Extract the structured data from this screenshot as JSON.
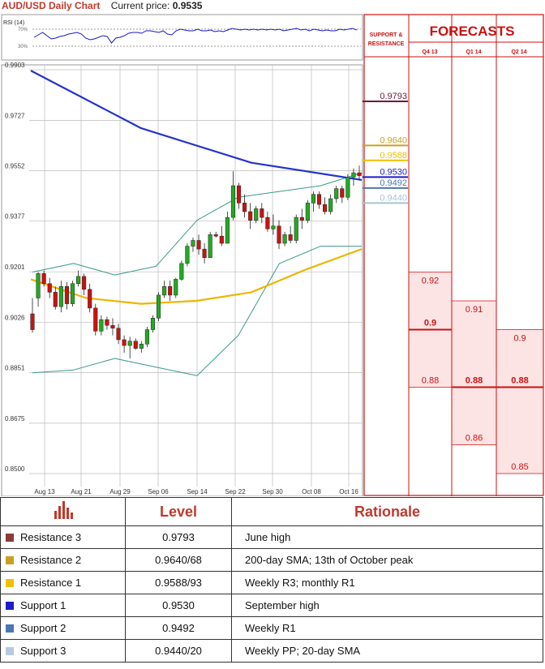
{
  "header": {
    "title": "AUD/USD Daily Chart",
    "price_label": "Current price:",
    "price_value": "0.9535"
  },
  "chart_data": {
    "type": "candlestick",
    "y_ticks": [
      "0.9903",
      "0.9727",
      "0.9552",
      "0.9377",
      "0.9201",
      "0.9026",
      "0.8851",
      "0.8675",
      "0.8500"
    ],
    "x_ticks": [
      "Aug 13",
      "Aug 21",
      "Aug 29",
      "Sep 06",
      "Sep 14",
      "Sep 22",
      "Sep 30",
      "Oct 08",
      "Oct 16"
    ],
    "ylim": [
      0.85,
      0.9903
    ],
    "rsi": {
      "label": "RSI (14)",
      "levels": [
        "70%",
        "30%"
      ]
    },
    "series": [
      {
        "name": "price",
        "color": "#111111"
      },
      {
        "name": "200-day SMA",
        "color": "#2233cc"
      },
      {
        "name": "50-day SMA",
        "color": "#f0b400"
      },
      {
        "name": "Bollinger bands",
        "color": "#3a9a8a"
      }
    ],
    "candles": [
      [
        0.9055,
        0.911,
        0.899,
        0.9
      ],
      [
        0.911,
        0.92,
        0.908,
        0.9195
      ],
      [
        0.9195,
        0.9205,
        0.915,
        0.916
      ],
      [
        0.916,
        0.918,
        0.911,
        0.913
      ],
      [
        0.913,
        0.915,
        0.907,
        0.908
      ],
      [
        0.908,
        0.917,
        0.906,
        0.915
      ],
      [
        0.915,
        0.9165,
        0.907,
        0.909
      ],
      [
        0.909,
        0.917,
        0.908,
        0.916
      ],
      [
        0.916,
        0.9205,
        0.915,
        0.9185
      ],
      [
        0.9185,
        0.9195,
        0.912,
        0.914
      ],
      [
        0.914,
        0.916,
        0.906,
        0.9075
      ],
      [
        0.9075,
        0.909,
        0.898,
        0.8995
      ],
      [
        0.8995,
        0.905,
        0.898,
        0.9035
      ],
      [
        0.9035,
        0.9045,
        0.9,
        0.9015
      ],
      [
        0.9015,
        0.904,
        0.898,
        0.9005
      ],
      [
        0.9005,
        0.902,
        0.895,
        0.8965
      ],
      [
        0.8965,
        0.898,
        0.892,
        0.8945
      ],
      [
        0.8945,
        0.8975,
        0.89,
        0.896
      ],
      [
        0.896,
        0.897,
        0.893,
        0.8935
      ],
      [
        0.8935,
        0.896,
        0.892,
        0.895
      ],
      [
        0.895,
        0.901,
        0.894,
        0.9
      ],
      [
        0.9,
        0.905,
        0.899,
        0.904
      ],
      [
        0.904,
        0.913,
        0.903,
        0.912
      ],
      [
        0.912,
        0.917,
        0.911,
        0.915
      ],
      [
        0.915,
        0.917,
        0.91,
        0.912
      ],
      [
        0.912,
        0.918,
        0.911,
        0.9175
      ],
      [
        0.9175,
        0.924,
        0.917,
        0.923
      ],
      [
        0.923,
        0.93,
        0.922,
        0.929
      ],
      [
        0.929,
        0.932,
        0.927,
        0.931
      ],
      [
        0.931,
        0.933,
        0.926,
        0.928
      ],
      [
        0.928,
        0.93,
        0.923,
        0.925
      ],
      [
        0.925,
        0.934,
        0.926,
        0.933
      ],
      [
        0.933,
        0.934,
        0.932,
        0.9325
      ],
      [
        0.9325,
        0.936,
        0.929,
        0.93
      ],
      [
        0.93,
        0.941,
        0.93,
        0.939
      ],
      [
        0.939,
        0.955,
        0.938,
        0.95
      ],
      [
        0.95,
        0.951,
        0.942,
        0.944
      ],
      [
        0.944,
        0.947,
        0.939,
        0.941
      ],
      [
        0.941,
        0.944,
        0.935,
        0.938
      ],
      [
        0.938,
        0.943,
        0.937,
        0.942
      ],
      [
        0.942,
        0.944,
        0.937,
        0.939
      ],
      [
        0.939,
        0.941,
        0.934,
        0.935
      ],
      [
        0.935,
        0.94,
        0.933,
        0.936
      ],
      [
        0.936,
        0.938,
        0.928,
        0.93
      ],
      [
        0.93,
        0.934,
        0.929,
        0.933
      ],
      [
        0.933,
        0.936,
        0.93,
        0.931
      ],
      [
        0.931,
        0.94,
        0.93,
        0.939
      ],
      [
        0.939,
        0.942,
        0.935,
        0.938
      ],
      [
        0.938,
        0.945,
        0.937,
        0.944
      ],
      [
        0.944,
        0.948,
        0.941,
        0.947
      ],
      [
        0.947,
        0.948,
        0.942,
        0.9435
      ],
      [
        0.9435,
        0.946,
        0.94,
        0.941
      ],
      [
        0.941,
        0.947,
        0.94,
        0.9455
      ],
      [
        0.9455,
        0.95,
        0.944,
        0.949
      ],
      [
        0.949,
        0.95,
        0.944,
        0.946
      ],
      [
        0.946,
        0.954,
        0.945,
        0.953
      ],
      [
        0.953,
        0.956,
        0.95,
        0.9545
      ],
      [
        0.9545,
        0.957,
        0.952,
        0.9535
      ]
    ],
    "sma200": [
      0.99,
      0.97,
      0.958,
      0.952
    ],
    "sma50": [
      0.9175,
      0.911,
      0.909,
      0.91,
      0.913,
      0.921,
      0.928
    ],
    "bb_upper": [
      0.92,
      0.923,
      0.919,
      0.922,
      0.938,
      0.946,
      0.948,
      0.95,
      0.9545
    ],
    "bb_lower": [
      0.885,
      0.886,
      0.89,
      0.887,
      0.884,
      0.898,
      0.923,
      0.929,
      0.929
    ]
  },
  "forecast_panel": {
    "sr_title_line1": "SUPPORT &",
    "sr_title_line2": "RESISTANCE",
    "title": "FORECASTS",
    "quarters": [
      "Q4 13",
      "Q1 14",
      "Q2 14"
    ],
    "levels": [
      {
        "value": "0.9793",
        "color": "#6b1a3a"
      },
      {
        "value": "0.9640",
        "color": "#c9a020"
      },
      {
        "value": "0.9588",
        "color": "#f0c000"
      },
      {
        "value": "0.9530",
        "color": "#1c1cc8"
      },
      {
        "value": "0.9492",
        "color": "#4a78b0"
      },
      {
        "value": "0.9440",
        "color": "#a8c4d8"
      }
    ],
    "q4": {
      "high": "0.92",
      "mid": "0.9",
      "low": "0.88"
    },
    "q1": {
      "high": "0.91",
      "mid": "0.88",
      "low": "0.86"
    },
    "q2": {
      "high": "0.9",
      "mid": "0.88",
      "low": "0.85"
    }
  },
  "table": {
    "headers": {
      "level": "Level",
      "rationale": "Rationale"
    },
    "rows": [
      {
        "name": "Resistance 3",
        "level": "0.9793",
        "rationale": "June high",
        "color": "#8b3a3a"
      },
      {
        "name": "Resistance 2",
        "level": "0.9640/68",
        "rationale": "200-day SMA; 13th of October peak",
        "color": "#c9a020"
      },
      {
        "name": "Resistance 1",
        "level": "0.9588/93",
        "rationale": "Weekly R3; monthly R1",
        "color": "#f0c000"
      },
      {
        "name": "Support 1",
        "level": "0.9530",
        "rationale": "September high",
        "color": "#1c1cc8"
      },
      {
        "name": "Support 2",
        "level": "0.9492",
        "rationale": "Weekly R1",
        "color": "#4a78b0"
      },
      {
        "name": "Support 3",
        "level": "0.9440/20",
        "rationale": "Weekly PP; 20-day SMA",
        "color": "#b8c8e0"
      }
    ]
  }
}
